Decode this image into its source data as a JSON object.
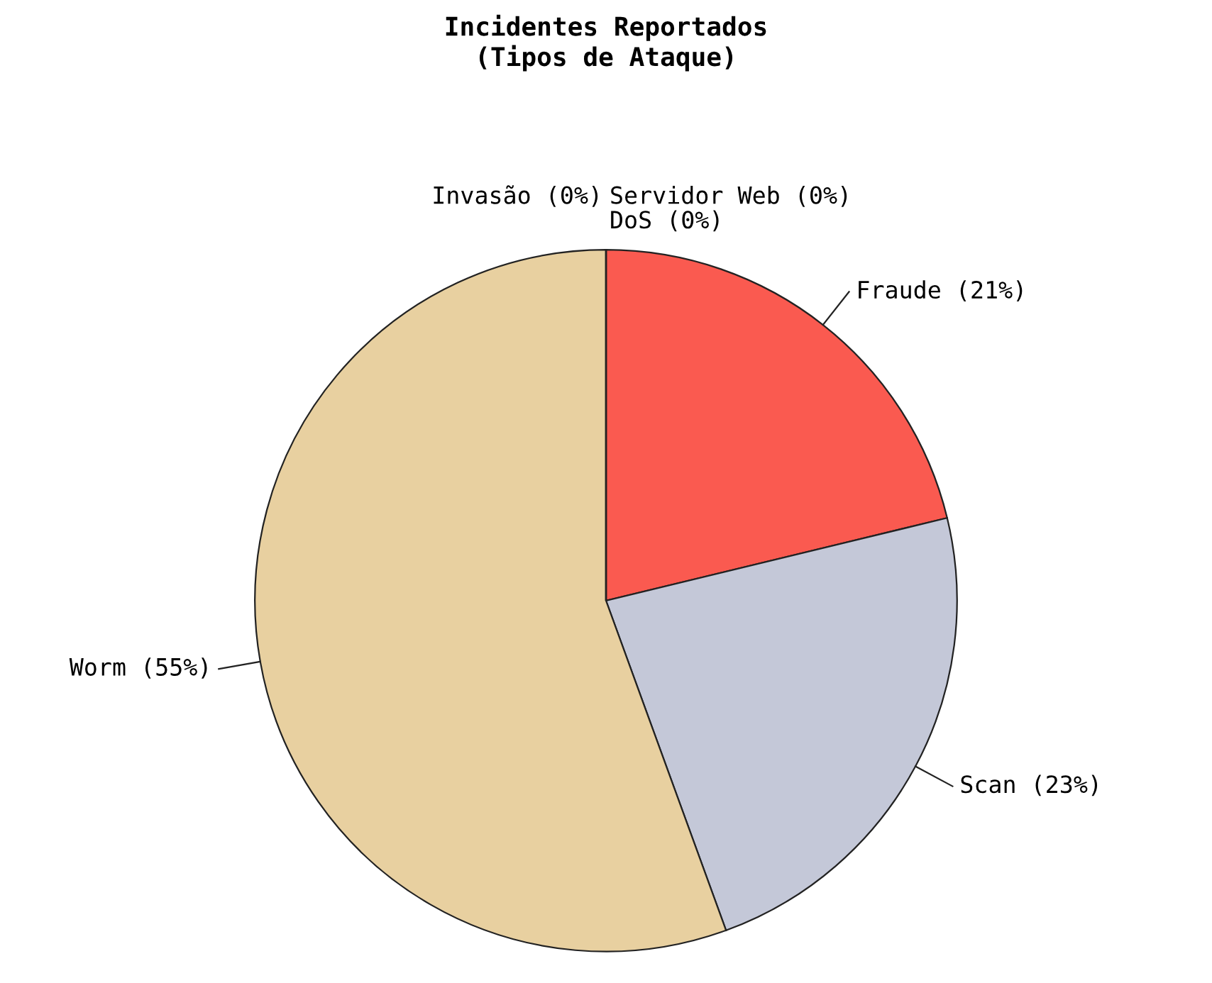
{
  "chart_data": {
    "type": "pie",
    "title": "Incidentes Reportados\n(Tipos de Ataque)",
    "categories": [
      "Fraude (21%)",
      "Scan (23%)",
      "Worm (55%)",
      "DoS (0%)",
      "Invasão (0%)",
      "Servidor Web (0%)"
    ],
    "values": [
      21,
      23,
      55,
      0,
      0,
      0
    ],
    "colors": [
      "#fa5a50",
      "#c4c8d8",
      "#e8d0a0",
      "#202020",
      "#303060",
      "#a08080"
    ]
  }
}
